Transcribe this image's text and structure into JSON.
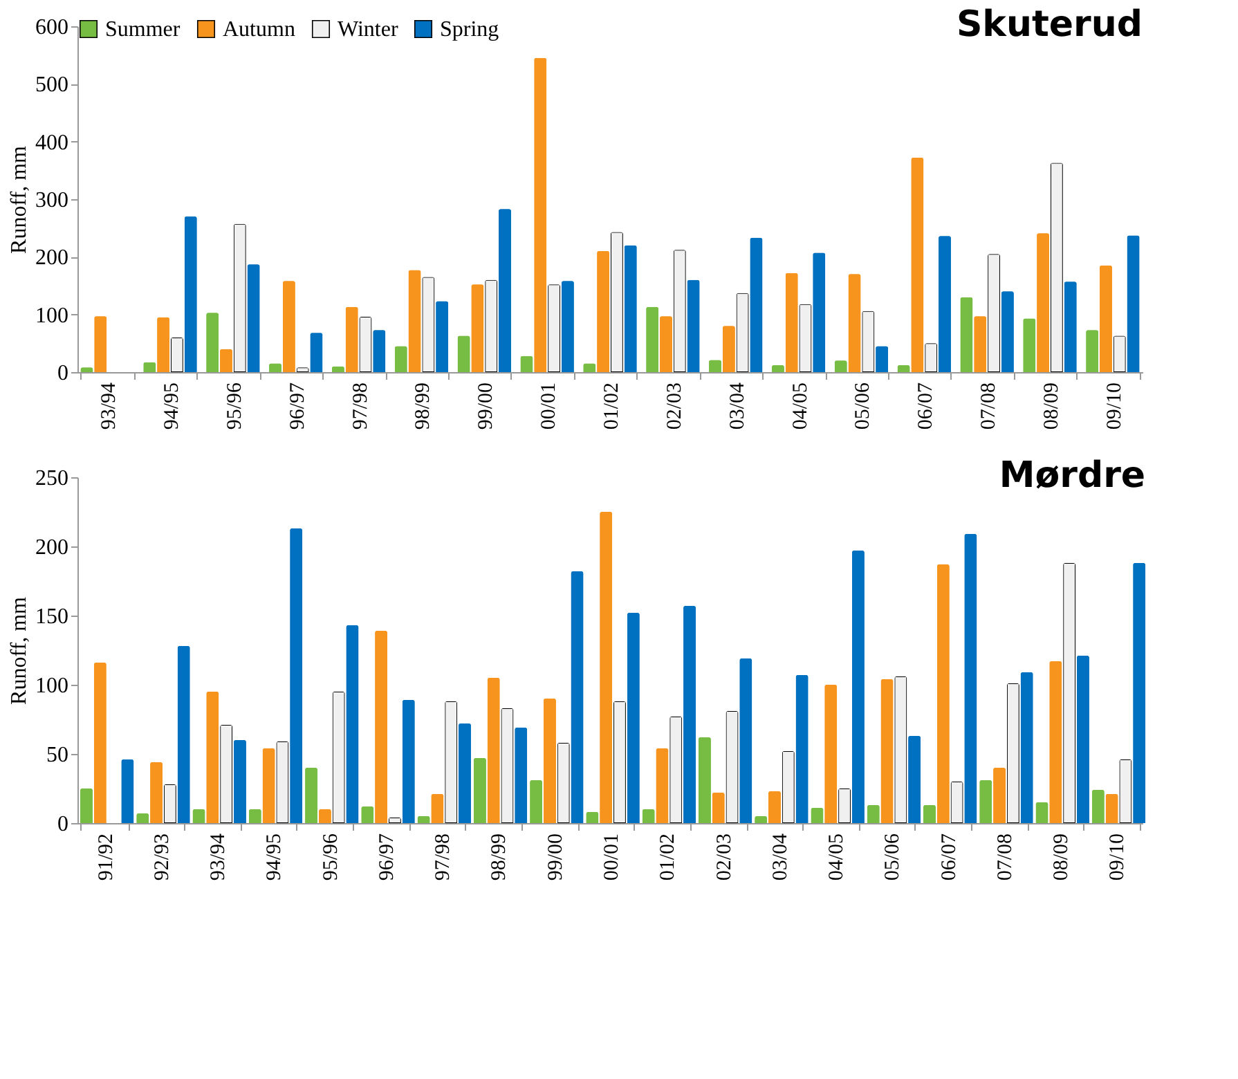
{
  "chart_data": [
    {
      "type": "bar",
      "title": "Skuterud",
      "ylabel": "Runoff, mm",
      "categories": [
        "93/94",
        "94/95",
        "95/96",
        "96/97",
        "97/98",
        "98/99",
        "99/00",
        "00/01",
        "01/02",
        "02/03",
        "03/04",
        "04/05",
        "05/06",
        "06/07",
        "07/08",
        "08/09",
        "09/10"
      ],
      "series": [
        {
          "name": "Summer",
          "color": "#77bd43",
          "values": [
            8,
            17,
            103,
            15,
            10,
            45,
            63,
            28,
            15,
            113,
            21,
            12,
            20,
            12,
            130,
            93,
            73
          ]
        },
        {
          "name": "Autumn",
          "color": "#f7941d",
          "values": [
            97,
            95,
            40,
            158,
            113,
            177,
            152,
            545,
            210,
            97,
            80,
            172,
            170,
            372,
            97,
            241,
            185
          ]
        },
        {
          "name": "Winter",
          "color": "#f0f0f0",
          "values": [
            null,
            60,
            257,
            8,
            96,
            165,
            160,
            152,
            243,
            212,
            137,
            118,
            106,
            50,
            205,
            363,
            63
          ]
        },
        {
          "name": "Spring",
          "color": "#0070c0",
          "values": [
            null,
            270,
            187,
            68,
            73,
            123,
            283,
            158,
            220,
            160,
            233,
            207,
            45,
            236,
            140,
            157,
            237
          ]
        }
      ],
      "ylim": [
        0,
        600
      ],
      "yticks": [
        0,
        100,
        200,
        300,
        400,
        500,
        600
      ],
      "grid": false,
      "legend": "top"
    },
    {
      "type": "bar",
      "title": "Mørdre",
      "ylabel": "Runoff, mm",
      "categories": [
        "91/92",
        "92/93",
        "93/94",
        "94/95",
        "95/96",
        "96/97",
        "97/98",
        "98/99",
        "99/00",
        "00/01",
        "01/02",
        "02/03",
        "03/04",
        "04/05",
        "05/06",
        "06/07",
        "07/08",
        "08/09",
        "09/10"
      ],
      "series": [
        {
          "name": "Summer",
          "color": "#77bd43",
          "values": [
            25,
            7,
            10,
            10,
            40,
            12,
            5,
            47,
            31,
            8,
            10,
            62,
            5,
            11,
            13,
            13,
            31,
            15,
            24
          ]
        },
        {
          "name": "Autumn",
          "color": "#f7941d",
          "values": [
            116,
            44,
            95,
            54,
            10,
            139,
            21,
            105,
            90,
            225,
            54,
            22,
            23,
            100,
            104,
            187,
            40,
            117,
            21
          ]
        },
        {
          "name": "Winter",
          "color": "#f0f0f0",
          "values": [
            null,
            28,
            71,
            59,
            95,
            4,
            88,
            83,
            58,
            88,
            77,
            81,
            52,
            25,
            106,
            30,
            101,
            188,
            46
          ]
        },
        {
          "name": "Spring",
          "color": "#0070c0",
          "values": [
            46,
            128,
            60,
            213,
            143,
            89,
            72,
            69,
            182,
            152,
            157,
            119,
            107,
            197,
            63,
            209,
            109,
            121,
            188
          ]
        }
      ],
      "ylim": [
        0,
        250
      ],
      "yticks": [
        0,
        50,
        100,
        150,
        200,
        250
      ],
      "grid": false,
      "legend": false
    }
  ]
}
